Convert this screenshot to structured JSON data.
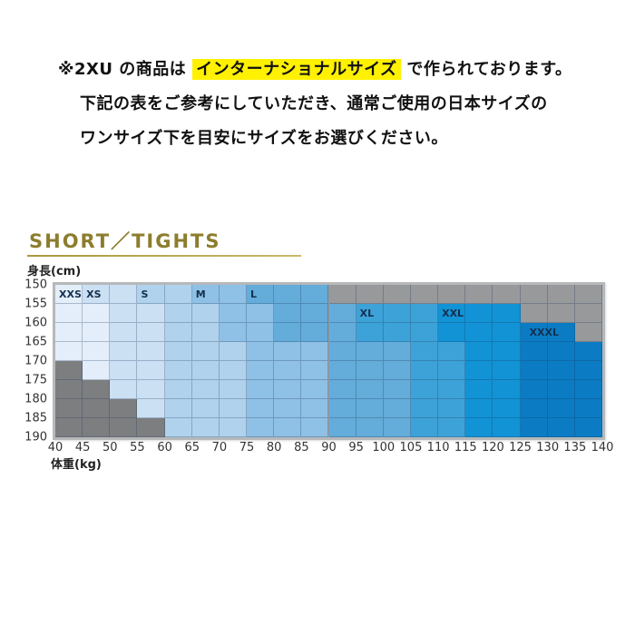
{
  "notice": {
    "line1_prefix": "※2XU の商品は",
    "line1_highlight": "インターナショナルサイズ",
    "line1_suffix": "で作られております。",
    "line2": "下記の表をご参考にしていただき、通常ご使用の日本サイズの",
    "line3": "ワンサイズ下を目安にサイズをお選びください。",
    "highlight_color": "#fff100"
  },
  "chart_data": {
    "type": "heatmap",
    "title": "SHORT／TIGHTS",
    "ylabel": "身長(cm)",
    "xlabel": "体重(kg)",
    "x_unit": "kg",
    "y_unit": "cm",
    "x_ticks": [
      40,
      45,
      50,
      55,
      60,
      65,
      70,
      75,
      80,
      85,
      90,
      95,
      100,
      105,
      110,
      115,
      120,
      125,
      130,
      135,
      140
    ],
    "y_ticks": [
      150,
      155,
      160,
      165,
      170,
      175,
      180,
      185,
      190
    ],
    "sizes": [
      "XXS",
      "XS",
      "S",
      "M",
      "L",
      "XL",
      "XXL",
      "XXXL"
    ],
    "colors": {
      "XXS": "#e3eefa",
      "XS": "#cce0f4",
      "S": "#b0d2ec",
      "M": "#8fc0e5",
      "L": "#64acda",
      "XL": "#3da2d8",
      "XXL": "#1193d6",
      "XXXL": "#0b7cc4",
      "NA_TOP": "#98999b",
      "NA_BOT": "#7d7e80",
      "label_text": "#14304e",
      "title_gold": "#8c7d2e"
    },
    "rows": [
      {
        "height_range": "150-155",
        "segments": [
          {
            "size": "XXS",
            "from": 40,
            "to": 45
          },
          {
            "size": "XS",
            "from": 45,
            "to": 55
          },
          {
            "size": "S",
            "from": 55,
            "to": 65
          },
          {
            "size": "M",
            "from": 65,
            "to": 75
          },
          {
            "size": "L",
            "from": 75,
            "to": 90
          },
          {
            "size": "NA_TOP",
            "from": 90,
            "to": 140
          }
        ]
      },
      {
        "height_range": "155-160",
        "segments": [
          {
            "size": "XXS",
            "from": 40,
            "to": 50
          },
          {
            "size": "XS",
            "from": 50,
            "to": 60
          },
          {
            "size": "S",
            "from": 60,
            "to": 70
          },
          {
            "size": "M",
            "from": 70,
            "to": 80
          },
          {
            "size": "L",
            "from": 80,
            "to": 95
          },
          {
            "size": "XL",
            "from": 95,
            "to": 110
          },
          {
            "size": "XXL",
            "from": 110,
            "to": 125
          },
          {
            "size": "NA_TOP",
            "from": 125,
            "to": 140
          }
        ]
      },
      {
        "height_range": "160-165",
        "segments": [
          {
            "size": "XXS",
            "from": 40,
            "to": 50
          },
          {
            "size": "XS",
            "from": 50,
            "to": 60
          },
          {
            "size": "S",
            "from": 60,
            "to": 70
          },
          {
            "size": "M",
            "from": 70,
            "to": 80
          },
          {
            "size": "L",
            "from": 80,
            "to": 95
          },
          {
            "size": "XL",
            "from": 95,
            "to": 110
          },
          {
            "size": "XXL",
            "from": 110,
            "to": 125
          },
          {
            "size": "XXXL",
            "from": 125,
            "to": 135
          },
          {
            "size": "NA_TOP",
            "from": 135,
            "to": 140
          }
        ]
      },
      {
        "height_range": "165-170",
        "segments": [
          {
            "size": "XXS",
            "from": 40,
            "to": 50
          },
          {
            "size": "XS",
            "from": 50,
            "to": 60
          },
          {
            "size": "S",
            "from": 60,
            "to": 75
          },
          {
            "size": "M",
            "from": 75,
            "to": 90
          },
          {
            "size": "L",
            "from": 90,
            "to": 105
          },
          {
            "size": "XL",
            "from": 105,
            "to": 115
          },
          {
            "size": "XXL",
            "from": 115,
            "to": 125
          },
          {
            "size": "XXXL",
            "from": 125,
            "to": 140
          }
        ]
      },
      {
        "height_range": "170-175",
        "segments": [
          {
            "size": "NA_BOT",
            "from": 40,
            "to": 45
          },
          {
            "size": "XXS",
            "from": 45,
            "to": 50
          },
          {
            "size": "XS",
            "from": 50,
            "to": 60
          },
          {
            "size": "S",
            "from": 60,
            "to": 75
          },
          {
            "size": "M",
            "from": 75,
            "to": 90
          },
          {
            "size": "L",
            "from": 90,
            "to": 105
          },
          {
            "size": "XL",
            "from": 105,
            "to": 115
          },
          {
            "size": "XXL",
            "from": 115,
            "to": 125
          },
          {
            "size": "XXXL",
            "from": 125,
            "to": 140
          }
        ]
      },
      {
        "height_range": "175-180",
        "segments": [
          {
            "size": "NA_BOT",
            "from": 40,
            "to": 50
          },
          {
            "size": "XS",
            "from": 50,
            "to": 60
          },
          {
            "size": "S",
            "from": 60,
            "to": 75
          },
          {
            "size": "M",
            "from": 75,
            "to": 90
          },
          {
            "size": "L",
            "from": 90,
            "to": 105
          },
          {
            "size": "XL",
            "from": 105,
            "to": 115
          },
          {
            "size": "XXL",
            "from": 115,
            "to": 125
          },
          {
            "size": "XXXL",
            "from": 125,
            "to": 140
          }
        ]
      },
      {
        "height_range": "180-185",
        "segments": [
          {
            "size": "NA_BOT",
            "from": 40,
            "to": 55
          },
          {
            "size": "XS",
            "from": 55,
            "to": 60
          },
          {
            "size": "S",
            "from": 60,
            "to": 75
          },
          {
            "size": "M",
            "from": 75,
            "to": 90
          },
          {
            "size": "L",
            "from": 90,
            "to": 105
          },
          {
            "size": "XL",
            "from": 105,
            "to": 115
          },
          {
            "size": "XXL",
            "from": 115,
            "to": 125
          },
          {
            "size": "XXXL",
            "from": 125,
            "to": 140
          }
        ]
      },
      {
        "height_range": "185-190",
        "segments": [
          {
            "size": "NA_BOT",
            "from": 40,
            "to": 60
          },
          {
            "size": "S",
            "from": 60,
            "to": 75
          },
          {
            "size": "M",
            "from": 75,
            "to": 90
          },
          {
            "size": "L",
            "from": 90,
            "to": 105
          },
          {
            "size": "XL",
            "from": 105,
            "to": 115
          },
          {
            "size": "XXL",
            "from": 115,
            "to": 125
          },
          {
            "size": "XXXL",
            "from": 125,
            "to": 140
          }
        ]
      }
    ],
    "size_labels": [
      {
        "size": "XXS",
        "row": 0,
        "at_weight": 40
      },
      {
        "size": "XS",
        "row": 0,
        "at_weight": 45
      },
      {
        "size": "S",
        "row": 0,
        "at_weight": 55
      },
      {
        "size": "M",
        "row": 0,
        "at_weight": 65
      },
      {
        "size": "L",
        "row": 0,
        "at_weight": 75
      },
      {
        "size": "XL",
        "row": 1,
        "at_weight": 95
      },
      {
        "size": "XXL",
        "row": 1,
        "at_weight": 110
      },
      {
        "size": "XXXL",
        "row": 2,
        "at_weight": 126
      }
    ],
    "legend_position": "none",
    "grid": true
  }
}
